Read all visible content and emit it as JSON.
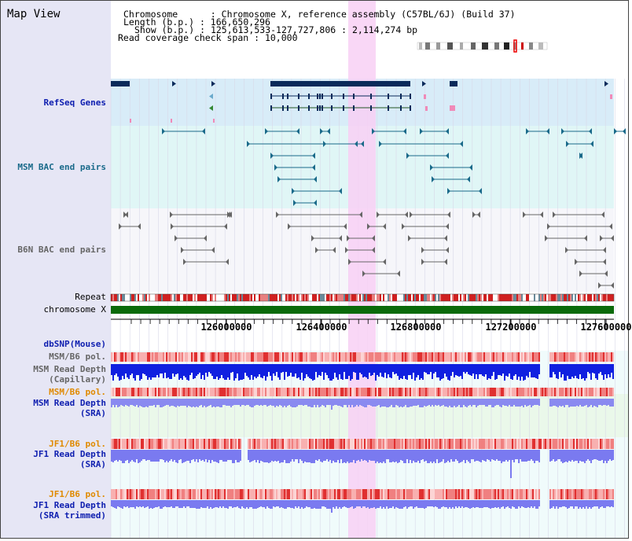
{
  "page": {
    "title": "Map View"
  },
  "header": {
    "chromosome_key": "Chromosome",
    "chromosome_val": "Chromosome X, reference assembly (C57BL/6J) (Build 37)",
    "length_key": "Length (b.p.)",
    "length_val": "166,650,296",
    "show_key": "Show (b.p.)",
    "show_val": "125,613,533-127,727,806 : 2,114,274 bp",
    "coverage_key": "Read coverage check span",
    "coverage_val": "10,000"
  },
  "tracks": {
    "refseq": "RefSeq Genes",
    "msm_bac": "MSM BAC end pairs",
    "b6n_bac": "B6N BAC end pairs",
    "repeat": "Repeat",
    "chromosome": "chromosome X",
    "dbsnp": "dbSNP(Mouse)",
    "msm_b6_pol_1": "MSM/B6 pol.",
    "msm_read_depth_cap_1": "MSM Read Depth",
    "msm_read_depth_cap_2": "(Capillary)",
    "msm_b6_pol_2": "MSM/B6 pol.",
    "msm_read_depth_sra_1": "MSM Read Depth",
    "msm_read_depth_sra_2": "(SRA)",
    "jf1_b6_pol_1": "JF1/B6 pol.",
    "jf1_read_depth_sra_1": "JF1 Read Depth",
    "jf1_read_depth_sra_2": "(SRA)",
    "jf1_b6_pol_2": "JF1/B6 pol.",
    "jf1_read_depth_trim_1": "JF1 Read Depth",
    "jf1_read_depth_trim_2": "(SRA trimmed)"
  },
  "ruler": {
    "ticks": [
      "126000000",
      "126400000",
      "126800000",
      "127200000",
      "127600000"
    ]
  },
  "colors": {
    "sidebar": "#e6e6f5",
    "refseq_bg": "#d8ecf8",
    "msm_bg": "#e0f6f6",
    "b6n_bg": "#f6f6fa",
    "highlight": "#f8d0f4",
    "gene": "#0a2a5a",
    "msm_pair": "#1a6a8a",
    "b6n_pair": "#666666",
    "depth_dark": "#1020e0",
    "depth_light": "#7a7af0",
    "chrom": "#0a6a0a"
  }
}
